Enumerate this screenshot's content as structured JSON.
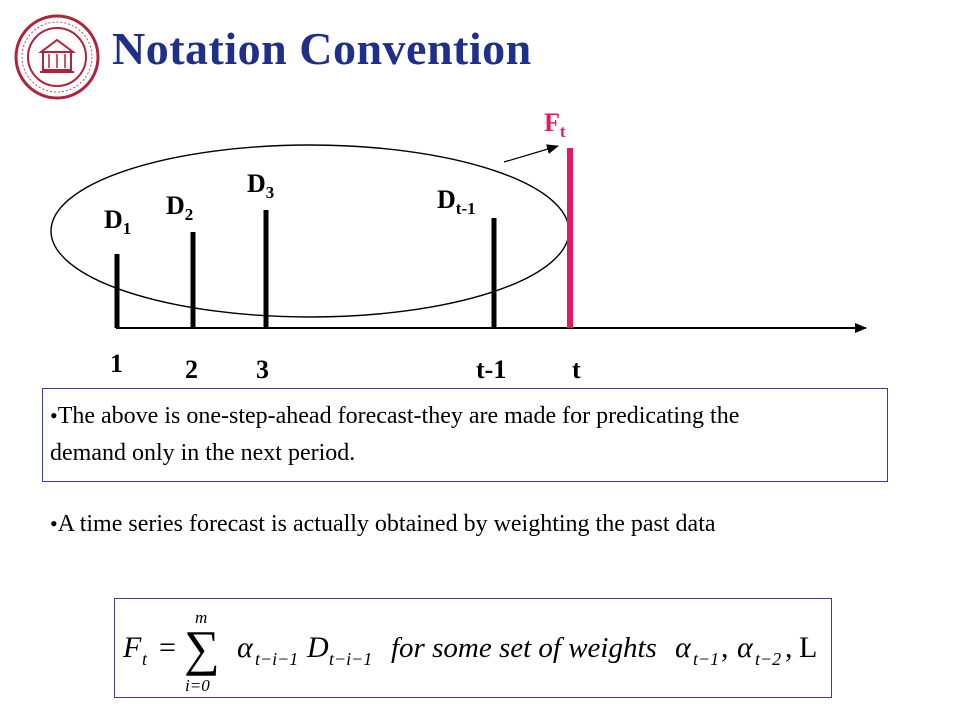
{
  "slide": {
    "title": "Notation Convention"
  },
  "diagram": {
    "forecast_label": {
      "base": "F",
      "sub": "t"
    },
    "demand_labels": [
      {
        "base": "D",
        "sub": "1"
      },
      {
        "base": "D",
        "sub": "2"
      },
      {
        "base": "D",
        "sub": "3"
      },
      {
        "base": "D",
        "sub": "t-1"
      }
    ],
    "axis_ticks": [
      "1",
      "2",
      "3",
      "t-1",
      "t"
    ],
    "colors": {
      "demand_bar": "#000000",
      "forecast_bar": "#e8185e",
      "axis": "#000000"
    }
  },
  "bullets": [
    "The above is one-step-ahead forecast-they are made for predicating the demand only in the next period.",
    "A time series forecast is actually obtained by weighting the past data"
  ],
  "formula": {
    "lhs": "F",
    "lhs_sub": "t",
    "equals": "=",
    "sigma": "∑",
    "upper": "m",
    "lower": "i=0",
    "alpha": "α",
    "alpha_sub": "t−i−1",
    "d": "D",
    "d_sub": "t−i−1",
    "text": "for some set of weights",
    "w1": "α",
    "w1_sub": "t−1",
    "sep1": ",",
    "w2": "α",
    "w2_sub": "t−2",
    "sep2": ",",
    "ellipsis": "L"
  },
  "logo": {
    "icon": "university-seal-icon"
  }
}
